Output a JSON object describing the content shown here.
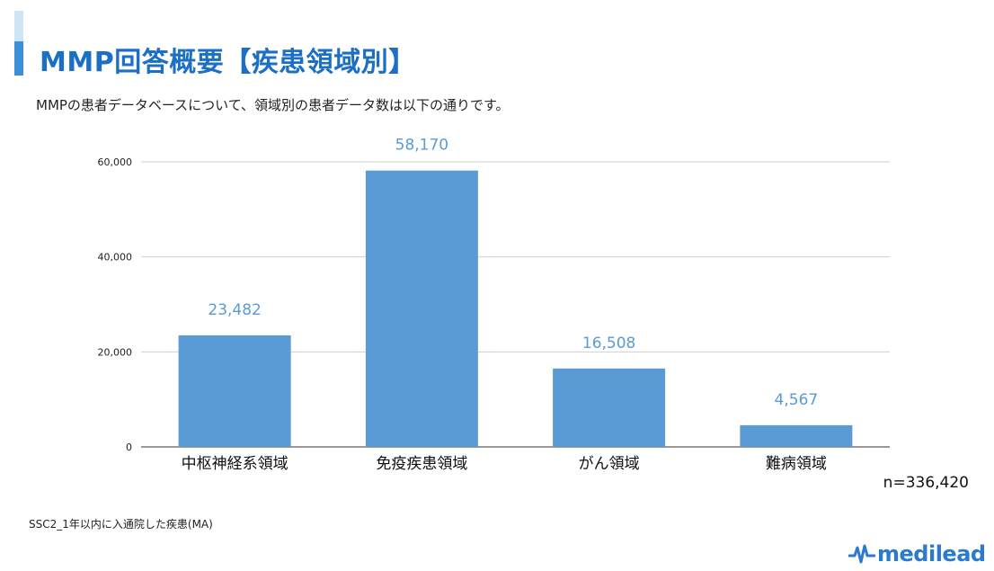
{
  "header": {
    "title": "MMP回答概要【疾患領域別】",
    "subtitle": "MMPの患者データベースについて、領域別の患者データ数は以下の通りです。"
  },
  "chart_data": {
    "type": "bar",
    "categories": [
      "中枢神経系領域",
      "免疫疾患領域",
      "がん領域",
      "難病領域"
    ],
    "values": [
      23482,
      58170,
      16508,
      4567
    ],
    "value_labels": [
      "23,482",
      "58,170",
      "16,508",
      "4,567"
    ],
    "yticks": [
      0,
      20000,
      40000,
      60000
    ],
    "ytick_labels": [
      "0",
      "20,000",
      "40,000",
      "60,000"
    ],
    "ylim": [
      0,
      60000
    ],
    "grid": true,
    "bar_color": "#5b9bd5",
    "data_label_color": "#5b9bd5"
  },
  "notes": {
    "sample_size": "n=336,420",
    "footnote": "SSC2_1年以内に入通院した疾患(MA)"
  },
  "logo": {
    "text": "medilead",
    "icon": "pulse-icon",
    "color": "#2a7bd0"
  }
}
